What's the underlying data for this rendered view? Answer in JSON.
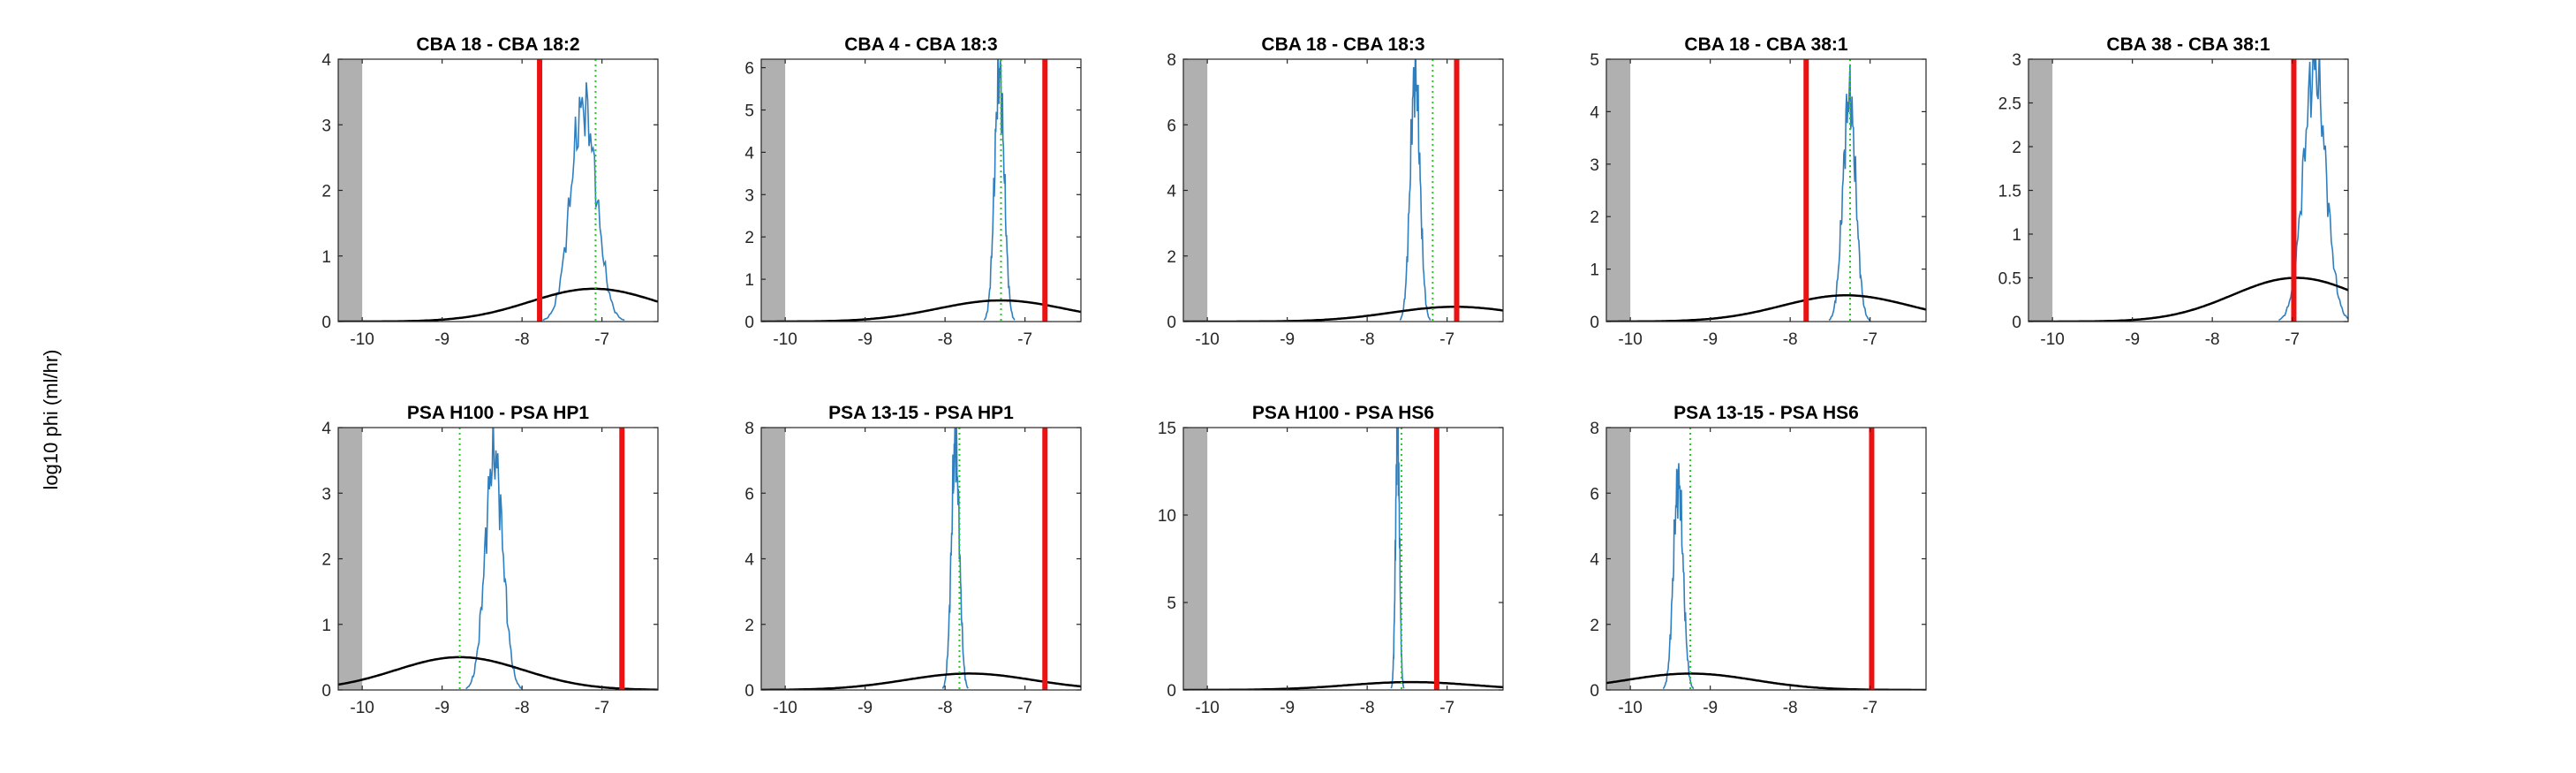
{
  "figure": {
    "ylabel": "log10 phi (ml/hr)"
  },
  "style": {
    "hist_color": "#2f7fbf",
    "gauss_color": "#000000",
    "red_line_color": "#ee1111",
    "green_line_color": "#22cc22",
    "shade_color": "#b0b0b0"
  },
  "chart_data": [
    {
      "type": "line",
      "title": "CBA 18 - CBA 18:2",
      "xlim": [
        -10.3,
        -6.3
      ],
      "ylim": [
        0,
        4
      ],
      "xticks": [
        -10,
        -9,
        -8,
        -7
      ],
      "yticks": [
        0,
        1,
        2,
        3,
        4
      ],
      "shade_to": -10,
      "hist": {
        "center": -7.23,
        "sd": 0.16,
        "peak": 3.3
      },
      "gaussian": {
        "mean": -7.1,
        "sd": 0.8,
        "peak": 0.5
      },
      "red_line": -7.78,
      "green_line": -7.08
    },
    {
      "type": "line",
      "title": "CBA 4 - CBA 18:3",
      "xlim": [
        -10.3,
        -6.3
      ],
      "ylim": [
        0,
        6.2
      ],
      "xticks": [
        -10,
        -9,
        -8,
        -7
      ],
      "yticks": [
        0,
        1,
        2,
        3,
        4,
        5,
        6
      ],
      "shade_to": -10,
      "hist": {
        "center": -7.32,
        "sd": 0.06,
        "peak": 5.9
      },
      "gaussian": {
        "mean": -7.3,
        "sd": 0.8,
        "peak": 0.5
      },
      "red_line": -6.75,
      "green_line": -7.3
    },
    {
      "type": "line",
      "title": "CBA 18 - CBA 18:3",
      "xlim": [
        -10.3,
        -6.3
      ],
      "ylim": [
        0,
        8
      ],
      "xticks": [
        -10,
        -9,
        -8,
        -7
      ],
      "yticks": [
        0,
        2,
        4,
        6,
        8
      ],
      "shade_to": -10,
      "hist": {
        "center": -7.4,
        "sd": 0.06,
        "peak": 7.6
      },
      "gaussian": {
        "mean": -6.9,
        "sd": 0.8,
        "peak": 0.45
      },
      "red_line": -6.88,
      "green_line": -7.18
    },
    {
      "type": "line",
      "title": "CBA 18 - CBA 38:1",
      "xlim": [
        -10.3,
        -6.3
      ],
      "ylim": [
        0,
        5
      ],
      "xticks": [
        -10,
        -9,
        -8,
        -7
      ],
      "yticks": [
        0,
        1,
        2,
        3,
        4,
        5
      ],
      "shade_to": -10,
      "hist": {
        "center": -7.26,
        "sd": 0.08,
        "peak": 4.3
      },
      "gaussian": {
        "mean": -7.3,
        "sd": 0.8,
        "peak": 0.5
      },
      "red_line": -7.8,
      "green_line": -7.25
    },
    {
      "type": "line",
      "title": "CBA 38 - CBA 38:1",
      "xlim": [
        -10.3,
        -6.3
      ],
      "ylim": [
        0,
        3
      ],
      "xticks": [
        -10,
        -9,
        -8,
        -7
      ],
      "yticks": [
        0,
        0.5,
        1,
        1.5,
        2,
        2.5,
        3
      ],
      "shade_to": -10,
      "hist": {
        "center": -6.72,
        "sd": 0.14,
        "peak": 2.9
      },
      "gaussian": {
        "mean": -6.95,
        "sd": 0.8,
        "peak": 0.5
      },
      "red_line": -6.98,
      "green_line": -6.98
    },
    {
      "type": "line",
      "title": "PSA H100 - PSA HP1",
      "xlim": [
        -10.3,
        -6.3
      ],
      "ylim": [
        0,
        4
      ],
      "xticks": [
        -10,
        -9,
        -8,
        -7
      ],
      "yticks": [
        0,
        1,
        2,
        3,
        4
      ],
      "shade_to": -10,
      "hist": {
        "center": -8.35,
        "sd": 0.11,
        "peak": 3.6
      },
      "gaussian": {
        "mean": -8.78,
        "sd": 0.8,
        "peak": 0.5
      },
      "red_line": -6.75,
      "green_line": -8.78
    },
    {
      "type": "line",
      "title": "PSA 13-15 - PSA HP1",
      "xlim": [
        -10.3,
        -6.3
      ],
      "ylim": [
        0,
        8
      ],
      "xticks": [
        -10,
        -9,
        -8,
        -7
      ],
      "yticks": [
        0,
        2,
        4,
        6,
        8
      ],
      "shade_to": -10,
      "hist": {
        "center": -7.87,
        "sd": 0.05,
        "peak": 7.5
      },
      "gaussian": {
        "mean": -7.7,
        "sd": 0.8,
        "peak": 0.5
      },
      "red_line": -6.75,
      "green_line": -7.82
    },
    {
      "type": "line",
      "title": "PSA H100 - PSA HS6",
      "xlim": [
        -10.3,
        -6.3
      ],
      "ylim": [
        0,
        15
      ],
      "xticks": [
        -10,
        -9,
        -8,
        -7
      ],
      "yticks": [
        0,
        5,
        10,
        15
      ],
      "shade_to": -10,
      "hist": {
        "center": -7.62,
        "sd": 0.025,
        "peak": 14.7
      },
      "gaussian": {
        "mean": -7.45,
        "sd": 0.8,
        "peak": 0.45
      },
      "red_line": -7.13,
      "green_line": -7.57
    },
    {
      "type": "line",
      "title": "PSA 13-15 - PSA HS6",
      "xlim": [
        -10.3,
        -6.3
      ],
      "ylim": [
        0,
        8
      ],
      "xticks": [
        -10,
        -9,
        -8,
        -7
      ],
      "yticks": [
        0,
        2,
        4,
        6,
        8
      ],
      "shade_to": -10,
      "hist": {
        "center": -9.4,
        "sd": 0.06,
        "peak": 6.4
      },
      "gaussian": {
        "mean": -9.25,
        "sd": 0.8,
        "peak": 0.5
      },
      "red_line": -6.98,
      "green_line": -9.25
    }
  ]
}
